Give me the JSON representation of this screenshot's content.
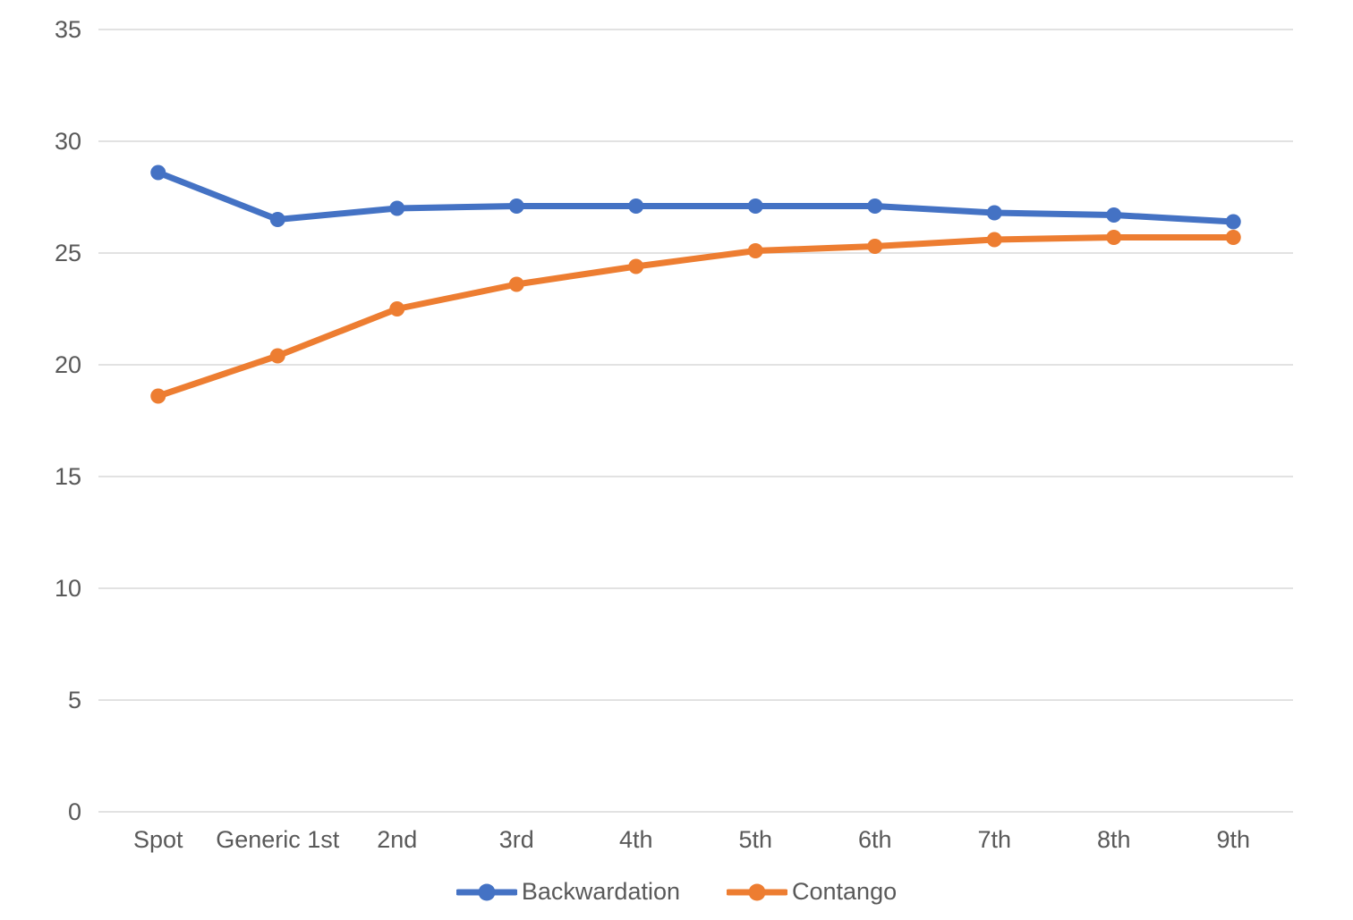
{
  "chart_data": {
    "type": "line",
    "title": "",
    "xlabel": "",
    "ylabel": "",
    "categories": [
      "Spot",
      "Generic 1st",
      "2nd",
      "3rd",
      "4th",
      "5th",
      "6th",
      "7th",
      "8th",
      "9th"
    ],
    "series": [
      {
        "name": "Backwardation",
        "color": "#4472C4",
        "values": [
          28.6,
          26.5,
          27.0,
          27.1,
          27.1,
          27.1,
          27.1,
          26.8,
          26.7,
          26.4
        ]
      },
      {
        "name": "Contango",
        "color": "#ED7D31",
        "values": [
          18.6,
          20.4,
          22.5,
          23.6,
          24.4,
          25.1,
          25.3,
          25.6,
          25.7,
          25.7
        ]
      }
    ],
    "ylim": [
      0,
      35
    ],
    "yticks": [
      0,
      5,
      10,
      15,
      20,
      25,
      30,
      35
    ],
    "grid": true,
    "legend_position": "bottom",
    "gridline_color": "#D9D9D9",
    "tick_label_color": "#595959",
    "background_color": "#FFFFFF"
  }
}
